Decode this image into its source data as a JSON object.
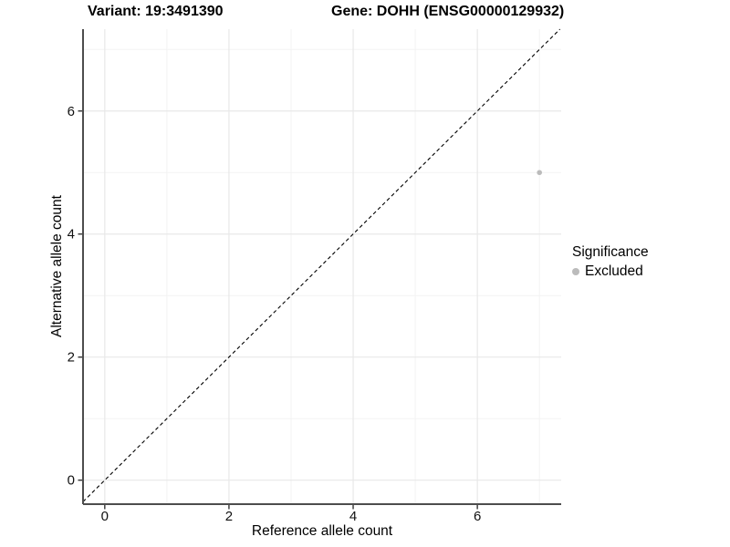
{
  "titles": {
    "variant": "Variant: 19:3491390",
    "gene": "Gene: DOHH (ENSG00000129932)"
  },
  "chart_data": {
    "type": "scatter",
    "xlabel": "Reference allele count",
    "ylabel": "Alternative allele count",
    "xlim": [
      -0.35,
      7.35
    ],
    "ylim": [
      -0.39,
      7.33
    ],
    "x_major_ticks": [
      0,
      2,
      4,
      6
    ],
    "y_major_ticks": [
      0,
      2,
      4,
      6
    ],
    "x_minor_ticks": [
      1,
      3,
      5,
      7
    ],
    "y_minor_ticks": [
      1,
      3,
      5,
      7
    ],
    "grid": true,
    "identity_line": {
      "show": true,
      "style": "dashed",
      "color": "#000000",
      "slope": 1,
      "intercept": 0
    },
    "series": [
      {
        "name": "Excluded",
        "color": "#bbbbbb",
        "points": [
          {
            "x": 7,
            "y": 5
          }
        ],
        "point_radius": 2.8
      }
    ],
    "legend": {
      "position": "right",
      "title": "Significance",
      "entries": [
        {
          "label": "Excluded",
          "color": "#bbbbbb"
        }
      ]
    },
    "colors": {
      "background": "#ffffff",
      "panel_background": "#ffffff",
      "grid_major": "#e8e8e8",
      "grid_minor": "#f3f3f3",
      "axis_line": "#4d4d4d",
      "tick_mark": "#333333",
      "tick_label": "#111111"
    }
  }
}
